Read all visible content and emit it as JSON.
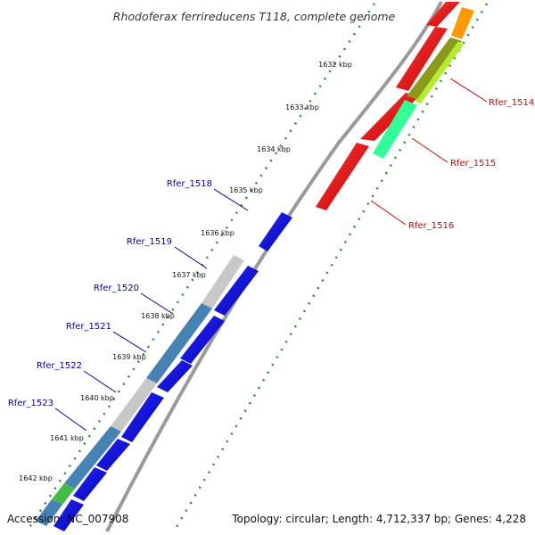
{
  "title": "Rhodoferax ferrireducens T118, complete genome",
  "footer": {
    "accession": "Accession: NC_007908",
    "summary": "Topology: circular; Length: 4,712,337 bp; Genes: 4,228"
  },
  "colors": {
    "backbone": "#9a9a9a",
    "forward_gene": "#ff0000",
    "reverse_gene": "#0000ff",
    "tick_dots": "#2e8b2e",
    "forward_label": "#d40000",
    "reverse_label": "#00009c",
    "gc_skew_gray": "#c8c8c8",
    "gc_skew_steel": "#4682b4",
    "orange": "#ff9900",
    "yellowgreen": "#aee030",
    "aquamarine": "#33ff99"
  },
  "ruler": [
    "1632 kbp",
    "1633 kbp",
    "1634 kbp",
    "1635 kbp",
    "1636 kbp",
    "1637 kbp",
    "1638 kbp",
    "1639 kbp",
    "1640 kbp",
    "1641 kbp",
    "1642 kbp"
  ],
  "forward_genes": [
    "Rfer_1514",
    "Rfer_1515",
    "Rfer_1516"
  ],
  "reverse_genes": [
    "Rfer_1518",
    "Rfer_1519",
    "Rfer_1520",
    "Rfer_1521",
    "Rfer_1522",
    "Rfer_1523"
  ]
}
